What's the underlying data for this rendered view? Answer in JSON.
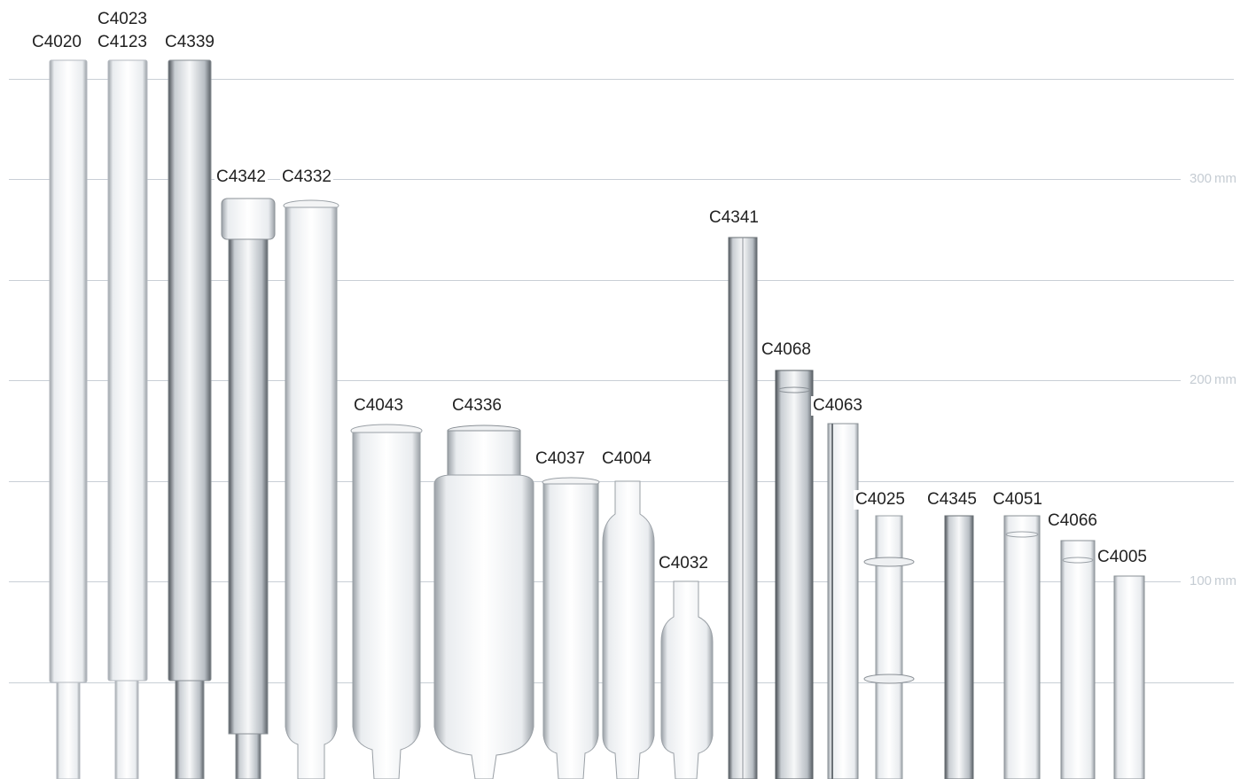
{
  "scale": {
    "ticks": [
      {
        "value": 300,
        "unit": "mm"
      },
      {
        "value": 200,
        "unit": "mm"
      },
      {
        "value": 100,
        "unit": "mm"
      }
    ]
  },
  "tubes": [
    {
      "code": "C4020"
    },
    {
      "code": "C4023"
    },
    {
      "code": "C4123"
    },
    {
      "code": "C4339"
    },
    {
      "code": "C4342"
    },
    {
      "code": "C4332"
    },
    {
      "code": "C4043"
    },
    {
      "code": "C4336"
    },
    {
      "code": "C4037"
    },
    {
      "code": "C4004"
    },
    {
      "code": "C4032"
    },
    {
      "code": "C4341"
    },
    {
      "code": "C4068"
    },
    {
      "code": "C4063"
    },
    {
      "code": "C4025"
    },
    {
      "code": "C4345"
    },
    {
      "code": "C4051"
    },
    {
      "code": "C4066"
    },
    {
      "code": "C4005"
    }
  ]
}
